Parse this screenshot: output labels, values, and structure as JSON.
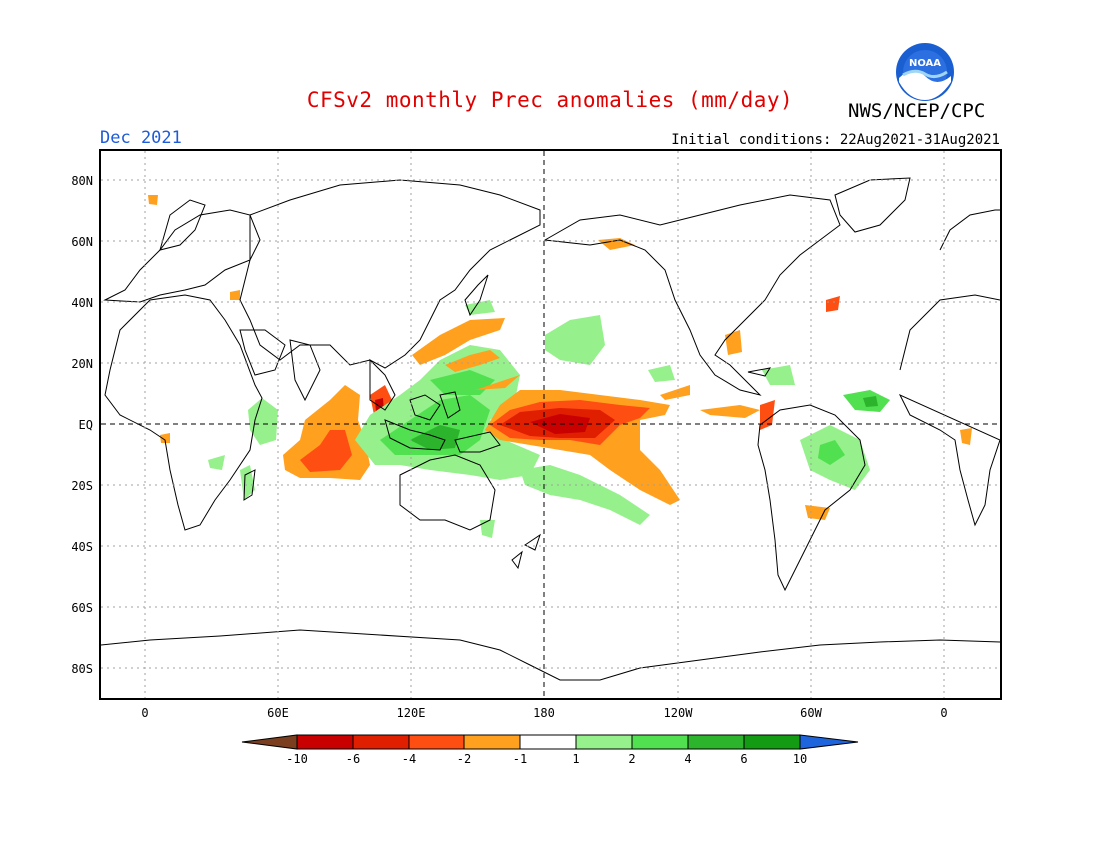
{
  "header": {
    "title": "CFSv2 monthly Prec anomalies (mm/day)",
    "agency": "NWS/NCEP/CPC",
    "valid_month": "Dec 2021",
    "initial_conditions": "Initial conditions: 22Aug2021-31Aug2021",
    "logo_text": "NOAA"
  },
  "map": {
    "projection": "cylindrical equidistant",
    "lon_range": [
      -20,
      370
    ],
    "lat_range": [
      -90,
      90
    ],
    "grid": true,
    "lat_labels": [
      "80N",
      "60N",
      "40N",
      "20N",
      "EQ",
      "20S",
      "40S",
      "60S",
      "80S"
    ],
    "lon_labels": [
      "0",
      "60E",
      "120E",
      "180",
      "120W",
      "60W",
      "0"
    ]
  },
  "colorbar": {
    "levels": [
      "-10",
      "-6",
      "-4",
      "-2",
      "-1",
      "1",
      "2",
      "4",
      "6",
      "10"
    ],
    "colors": [
      "#7b3f1f",
      "#c80000",
      "#e01e00",
      "#ff4e12",
      "#ffa01e",
      "#ffffff",
      "#96f08c",
      "#50e050",
      "#2db42d",
      "#149b14",
      "#1e64dc"
    ]
  }
}
